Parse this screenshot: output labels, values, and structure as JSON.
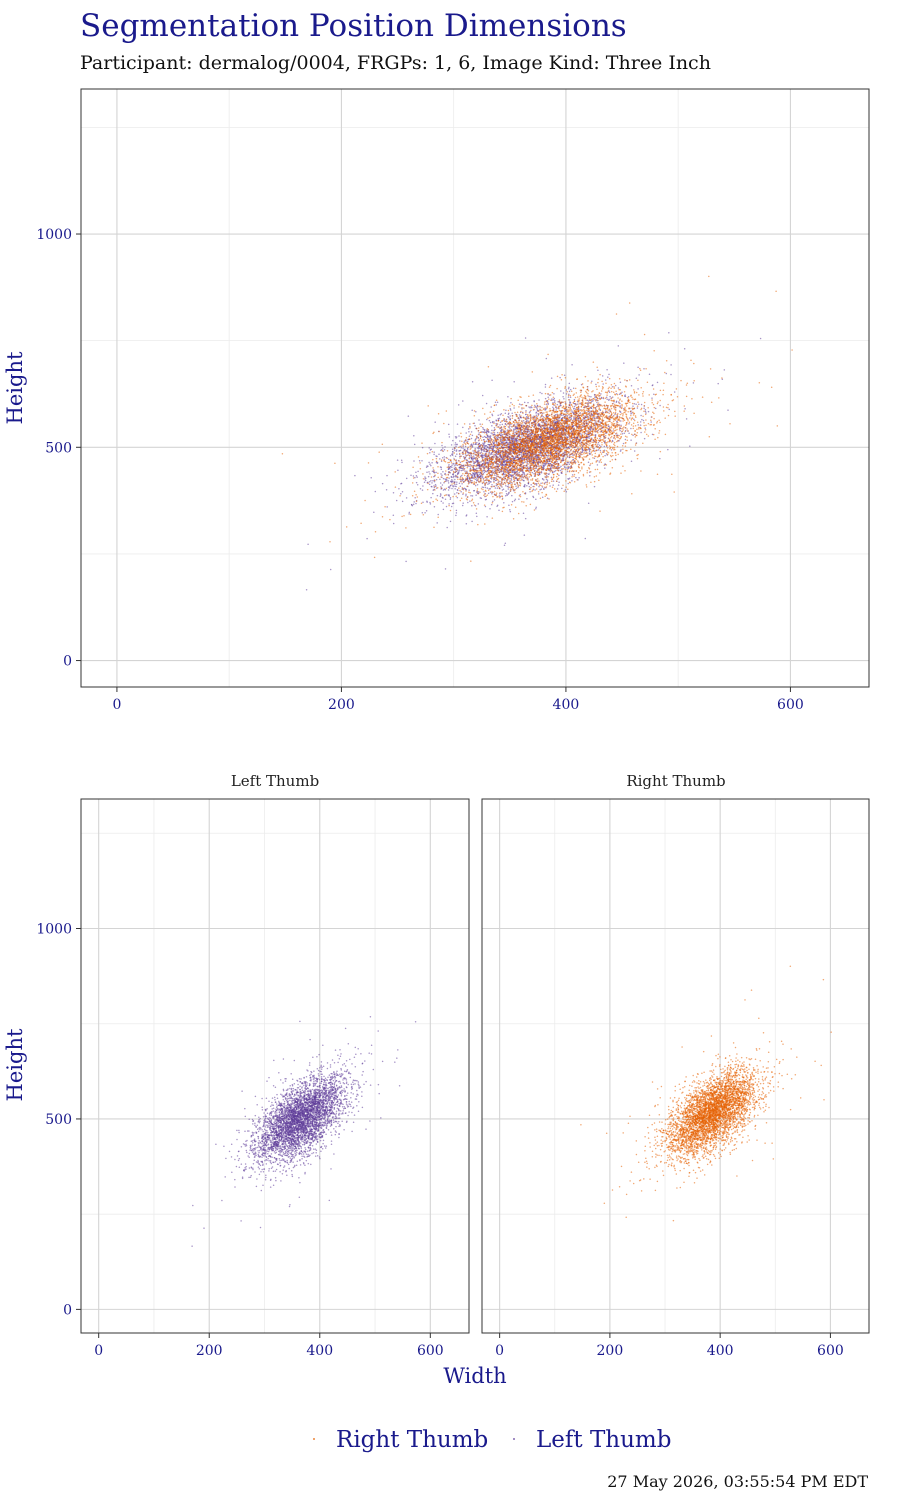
{
  "title": "Segmentation Position Dimensions",
  "subtitle": "Participant: dermalog/0004, FRGPs: 1, 6, Image Kind: Three Inch",
  "timestamp": "27 May 2026, 03:55:54 PM EDT",
  "colors": {
    "left_thumb": "#5e3c99",
    "right_thumb": "#e66101",
    "title": "#1a1a8c"
  },
  "chart_data": [
    {
      "type": "scatter",
      "panel": "combined",
      "title": "",
      "xlabel": "",
      "ylabel": "Height",
      "xlim": [
        -32,
        670
      ],
      "ylim": [
        -62,
        1340
      ],
      "x_ticks": [
        0,
        200,
        400,
        600
      ],
      "y_ticks": [
        0,
        500,
        1000
      ],
      "grid": true,
      "series": [
        {
          "name": "Left Thumb",
          "color": "#5e3c99",
          "center": [
            365,
            500
          ],
          "sd": [
            40,
            55
          ],
          "correlation": 0.6
        },
        {
          "name": "Right Thumb",
          "color": "#e66101",
          "center": [
            385,
            515
          ],
          "sd": [
            40,
            55
          ],
          "correlation": 0.6
        }
      ]
    },
    {
      "type": "scatter",
      "panel": "facet",
      "strip_label": "Left Thumb",
      "xlabel": "",
      "ylabel": "Height",
      "xlim": [
        -32,
        670
      ],
      "ylim": [
        -62,
        1340
      ],
      "x_ticks": [
        0,
        200,
        400,
        600
      ],
      "y_ticks": [
        0,
        500,
        1000
      ],
      "series": [
        {
          "name": "Left Thumb",
          "color": "#5e3c99",
          "center": [
            365,
            500
          ],
          "sd": [
            40,
            55
          ],
          "correlation": 0.6
        }
      ]
    },
    {
      "type": "scatter",
      "panel": "facet",
      "strip_label": "Right Thumb",
      "xlabel": "Width",
      "ylabel": "",
      "xlim": [
        -32,
        670
      ],
      "ylim": [
        -62,
        1340
      ],
      "x_ticks": [
        0,
        200,
        400,
        600
      ],
      "y_ticks": [
        0,
        500,
        1000
      ],
      "series": [
        {
          "name": "Right Thumb",
          "color": "#e66101",
          "center": [
            385,
            515
          ],
          "sd": [
            40,
            55
          ],
          "correlation": 0.6
        }
      ]
    }
  ],
  "legend": {
    "position": "bottom",
    "items": [
      {
        "label": "Right Thumb",
        "color": "#e66101"
      },
      {
        "label": "Left Thumb",
        "color": "#5e3c99"
      }
    ]
  }
}
